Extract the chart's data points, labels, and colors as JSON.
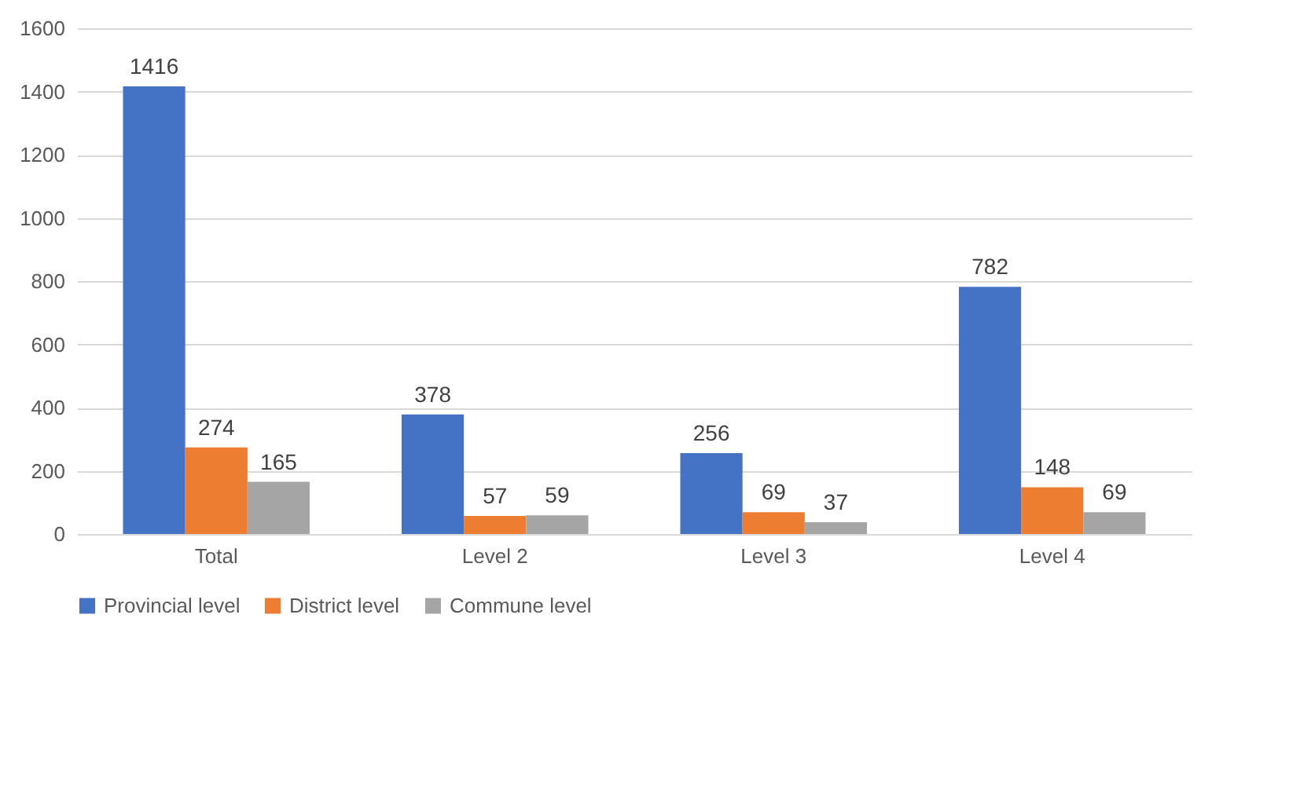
{
  "chart_data": {
    "type": "bar",
    "categories": [
      "Total",
      "Level 2",
      "Level 3",
      "Level 4"
    ],
    "series": [
      {
        "name": "Provincial level",
        "color": "#4472c4",
        "values": [
          1416,
          378,
          256,
          782
        ]
      },
      {
        "name": "District level",
        "color": "#ed7d31",
        "values": [
          274,
          57,
          69,
          148
        ]
      },
      {
        "name": "Commune level",
        "color": "#a5a5a5",
        "values": [
          165,
          59,
          37,
          69
        ]
      }
    ],
    "ylim": [
      0,
      1600
    ],
    "yticks": [
      0,
      200,
      400,
      600,
      800,
      1000,
      1200,
      1400,
      1600
    ],
    "grid": "y",
    "legend": "bottom",
    "data_labels": true
  }
}
